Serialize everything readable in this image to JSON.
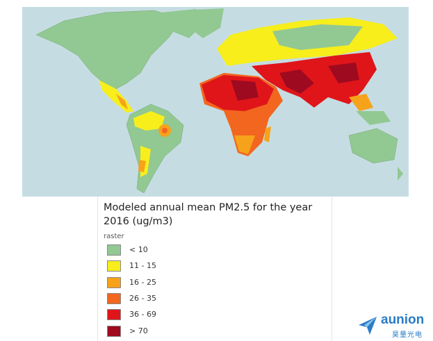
{
  "legend": {
    "title": "Modeled annual mean PM2.5 for the year 2016 (ug/m3)",
    "subtitle": "raster",
    "items": [
      {
        "label": "< 10",
        "color": "#92c892"
      },
      {
        "label": "11 - 15",
        "color": "#f7ee1c"
      },
      {
        "label": "16 - 25",
        "color": "#f7a21b"
      },
      {
        "label": "26 - 35",
        "color": "#f2661f"
      },
      {
        "label": "36 - 69",
        "color": "#e0151a"
      },
      {
        "label": "> 70",
        "color": "#9e0a1f"
      }
    ]
  },
  "logo": {
    "name": "aunion",
    "subtitle": "昊量光电"
  }
}
